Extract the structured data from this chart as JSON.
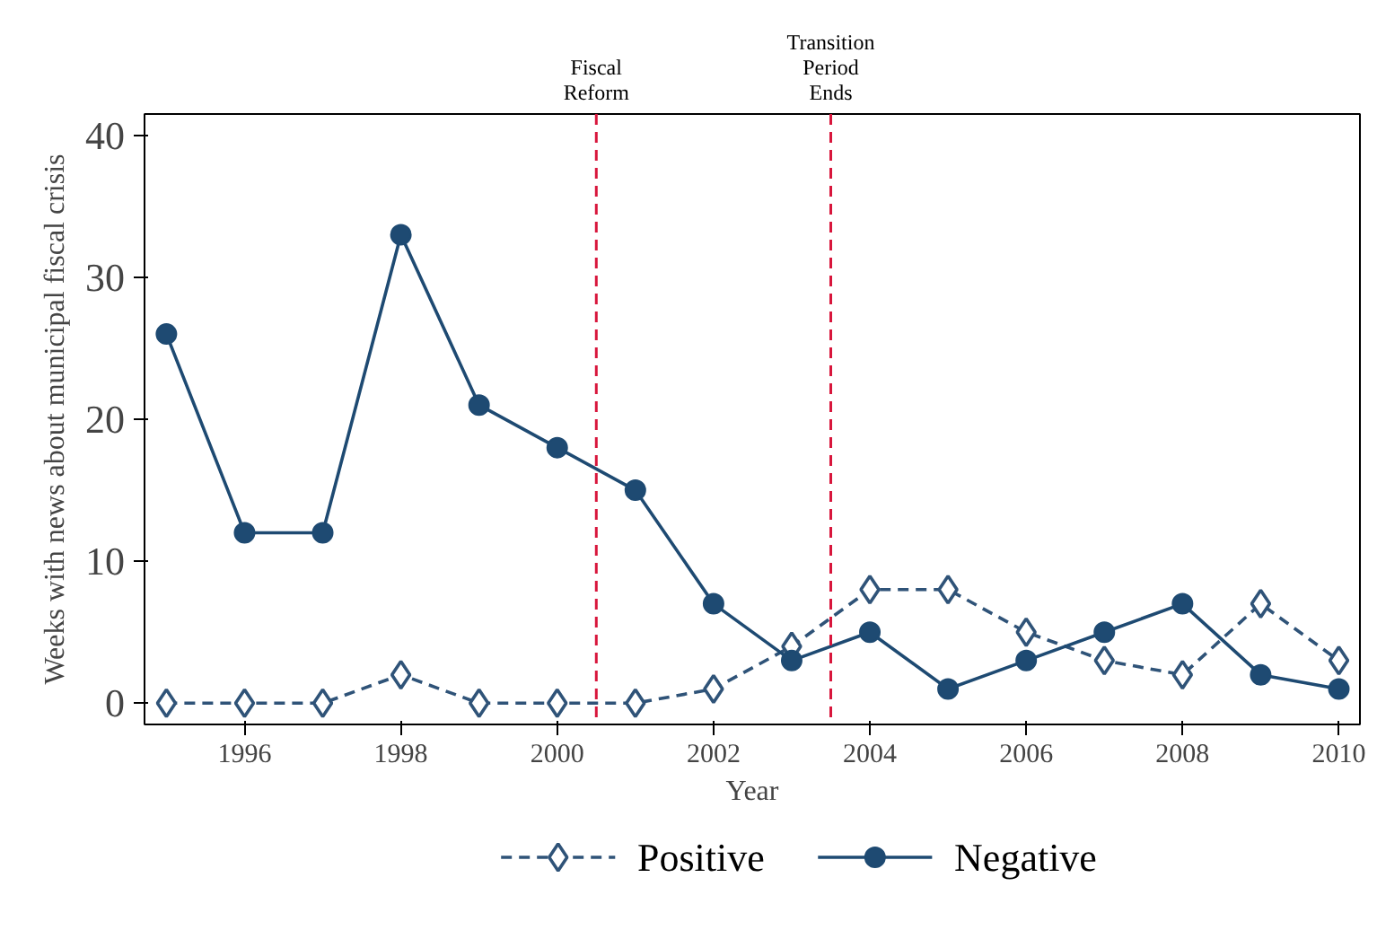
{
  "chart_data": {
    "type": "line",
    "xlabel": "Year",
    "ylabel": "Weeks with news about municipal fiscal crisis",
    "x": [
      1995,
      1996,
      1997,
      1998,
      1999,
      2000,
      2001,
      2002,
      2003,
      2004,
      2005,
      2006,
      2007,
      2008,
      2009,
      2010
    ],
    "series": [
      {
        "name": "Positive",
        "color": "#2f5378",
        "marker": "diamond",
        "line_style": "dashed",
        "values": [
          0,
          0,
          0,
          2,
          0,
          0,
          0,
          1,
          4,
          8,
          8,
          5,
          3,
          2,
          7,
          3
        ]
      },
      {
        "name": "Negative",
        "color": "#1e4a72",
        "marker": "circle",
        "line_style": "solid",
        "values": [
          26,
          12,
          12,
          33,
          21,
          18,
          15,
          7,
          3,
          5,
          1,
          3,
          5,
          7,
          2,
          1
        ]
      }
    ],
    "xlim": [
      1994.72,
      2010.27
    ],
    "ylim": [
      -1.5,
      41.5
    ],
    "xticks": [
      1996,
      1998,
      2000,
      2002,
      2004,
      2006,
      2008,
      2010
    ],
    "yticks": [
      0,
      10,
      20,
      30,
      40
    ],
    "ref_lines": [
      {
        "axis": "x",
        "value": 2000.5,
        "label": "Fiscal Reform",
        "color": "#d8163c",
        "line_style": "dashed"
      },
      {
        "axis": "x",
        "value": 2003.5,
        "label": "Transition Period Ends",
        "color": "#d8163c",
        "line_style": "dashed"
      }
    ],
    "grid": false,
    "legend": "bottom"
  }
}
